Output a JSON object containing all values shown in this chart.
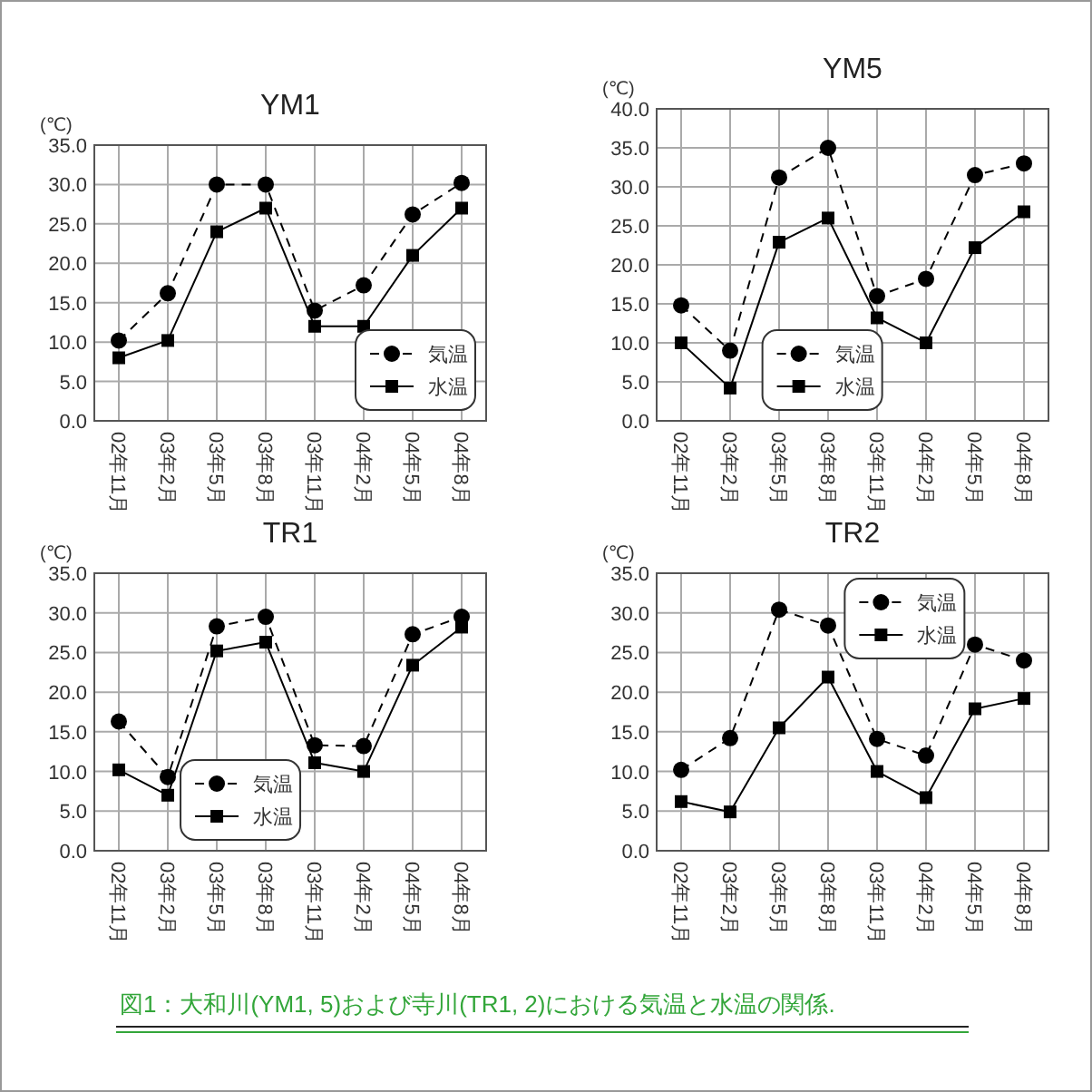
{
  "chart_data": [
    {
      "type": "line",
      "title": "YM1",
      "ylabel": "(℃)",
      "categories": [
        "02年11月",
        "03年2月",
        "03年5月",
        "03年8月",
        "03年11月",
        "04年2月",
        "04年5月",
        "04年8月"
      ],
      "series": [
        {
          "name": "気温",
          "color": "#000000",
          "marker": "circle",
          "line_style": "dashed",
          "values": [
            10.2,
            16.2,
            30.0,
            30.0,
            14.0,
            17.2,
            26.2,
            30.2
          ]
        },
        {
          "name": "水温",
          "color": "#000000",
          "marker": "square",
          "line_style": "solid",
          "values": [
            8.0,
            10.2,
            24.0,
            27.0,
            12.0,
            12.0,
            21.0,
            27.0
          ]
        }
      ],
      "ylim": [
        0,
        35
      ],
      "yticks": [
        {
          "value": 0,
          "label": "0.0"
        },
        {
          "value": 5,
          "label": "5.0"
        },
        {
          "value": 10,
          "label": "10.0"
        },
        {
          "value": 15,
          "label": "15.0"
        },
        {
          "value": 20,
          "label": "20.0"
        },
        {
          "value": 25,
          "label": "25.0"
        },
        {
          "value": 30,
          "label": "30.0"
        },
        {
          "value": 35,
          "label": "35.0"
        }
      ],
      "grid": true,
      "legend": "bottom right",
      "annotations": [
        "図1：大和川(YM1, 5)および寺川(TR1, 2)における気温と水温の関係."
      ]
    },
    {
      "type": "line",
      "title": "YM5",
      "ylabel": "(℃)",
      "categories": [
        "02年11月",
        "03年2月",
        "03年5月",
        "03年8月",
        "03年11月",
        "04年2月",
        "04年5月",
        "04年8月"
      ],
      "series": [
        {
          "name": "気温",
          "color": "#000000",
          "marker": "circle",
          "line_style": "dashed",
          "values": [
            14.8,
            9.0,
            31.2,
            35.0,
            16.0,
            18.2,
            31.5,
            33.0
          ]
        },
        {
          "name": "水温",
          "color": "#000000",
          "marker": "square",
          "line_style": "solid",
          "values": [
            10.0,
            4.2,
            22.9,
            26.0,
            13.2,
            10.0,
            22.2,
            26.8
          ]
        }
      ],
      "ylim": [
        0,
        40
      ],
      "yticks": [
        {
          "value": 0,
          "label": "0.0"
        },
        {
          "value": 5,
          "label": "5.0"
        },
        {
          "value": 10,
          "label": "10.0"
        },
        {
          "value": 15,
          "label": "15.0"
        },
        {
          "value": 20,
          "label": "20.0"
        },
        {
          "value": 25,
          "label": "25.0"
        },
        {
          "value": 30,
          "label": "30.0"
        },
        {
          "value": 35,
          "label": "35.0"
        },
        {
          "value": 40,
          "label": "40.0"
        }
      ],
      "grid": true,
      "legend": "bottom"
    },
    {
      "type": "line",
      "title": "TR1",
      "ylabel": "(℃)",
      "categories": [
        "02年11月",
        "03年2月",
        "03年5月",
        "03年8月",
        "03年11月",
        "04年2月",
        "04年5月",
        "04年8月"
      ],
      "series": [
        {
          "name": "気温",
          "color": "#000000",
          "marker": "circle",
          "line_style": "dashed",
          "values": [
            16.3,
            9.3,
            28.3,
            29.5,
            13.3,
            13.2,
            27.3,
            29.5
          ]
        },
        {
          "name": "水温",
          "color": "#000000",
          "marker": "square",
          "line_style": "solid",
          "values": [
            10.2,
            7.0,
            25.2,
            26.3,
            11.1,
            10.0,
            23.4,
            28.2
          ]
        }
      ],
      "ylim": [
        0,
        35
      ],
      "yticks": [
        {
          "value": 0,
          "label": "0.0"
        },
        {
          "value": 5,
          "label": "5.0"
        },
        {
          "value": 10,
          "label": "10.0"
        },
        {
          "value": 15,
          "label": "15.0"
        },
        {
          "value": 20,
          "label": "20.0"
        },
        {
          "value": 25,
          "label": "25.0"
        },
        {
          "value": 30,
          "label": "30.0"
        },
        {
          "value": 35,
          "label": "35.0"
        }
      ],
      "grid": true,
      "legend": "bottom left"
    },
    {
      "type": "line",
      "title": "TR2",
      "ylabel": "(℃)",
      "categories": [
        "02年11月",
        "03年2月",
        "03年5月",
        "03年8月",
        "03年11月",
        "04年2月",
        "04年5月",
        "04年8月"
      ],
      "series": [
        {
          "name": "気温",
          "color": "#000000",
          "marker": "circle",
          "line_style": "dashed",
          "values": [
            10.2,
            14.2,
            30.4,
            28.4,
            14.1,
            12.0,
            26.0,
            24.0
          ]
        },
        {
          "name": "水温",
          "color": "#000000",
          "marker": "square",
          "line_style": "solid",
          "values": [
            6.2,
            4.9,
            15.5,
            21.9,
            10.0,
            6.7,
            17.9,
            19.2
          ]
        }
      ],
      "ylim": [
        0,
        35
      ],
      "yticks": [
        {
          "value": 0,
          "label": "0.0"
        },
        {
          "value": 5,
          "label": "5.0"
        },
        {
          "value": 10,
          "label": "10.0"
        },
        {
          "value": 15,
          "label": "15.0"
        },
        {
          "value": 20,
          "label": "20.0"
        },
        {
          "value": 25,
          "label": "25.0"
        },
        {
          "value": 30,
          "label": "30.0"
        },
        {
          "value": 35,
          "label": "35.0"
        }
      ],
      "grid": true,
      "legend": "top right"
    }
  ]
}
